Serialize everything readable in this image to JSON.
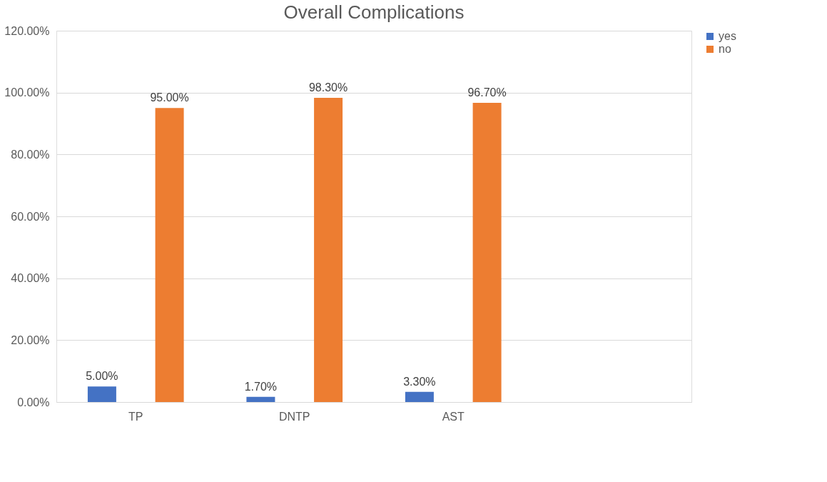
{
  "chart_data": {
    "type": "bar",
    "title": "Overall Complications",
    "categories": [
      "TP",
      "DNTP",
      "AST",
      null
    ],
    "series": [
      {
        "name": "yes",
        "color": "#4472c4",
        "values": [
          5.0,
          1.7,
          3.3,
          null
        ],
        "value_labels": [
          "5.00%",
          "1.70%",
          "3.30%",
          null
        ]
      },
      {
        "name": "no",
        "color": "#ed7d31",
        "values": [
          95.0,
          98.3,
          96.7,
          null
        ],
        "value_labels": [
          "95.00%",
          "98.30%",
          "96.70%",
          null
        ]
      }
    ],
    "ylim": [
      0,
      120
    ],
    "yticks": [
      {
        "value": 0,
        "label": "0.00%"
      },
      {
        "value": 20,
        "label": "20.00%"
      },
      {
        "value": 40,
        "label": "40.00%"
      },
      {
        "value": 60,
        "label": "60.00%"
      },
      {
        "value": 80,
        "label": "80.00%"
      },
      {
        "value": 100,
        "label": "100.00%"
      },
      {
        "value": 120,
        "label": "120.00%"
      }
    ],
    "grid": "y",
    "legend": "right"
  }
}
